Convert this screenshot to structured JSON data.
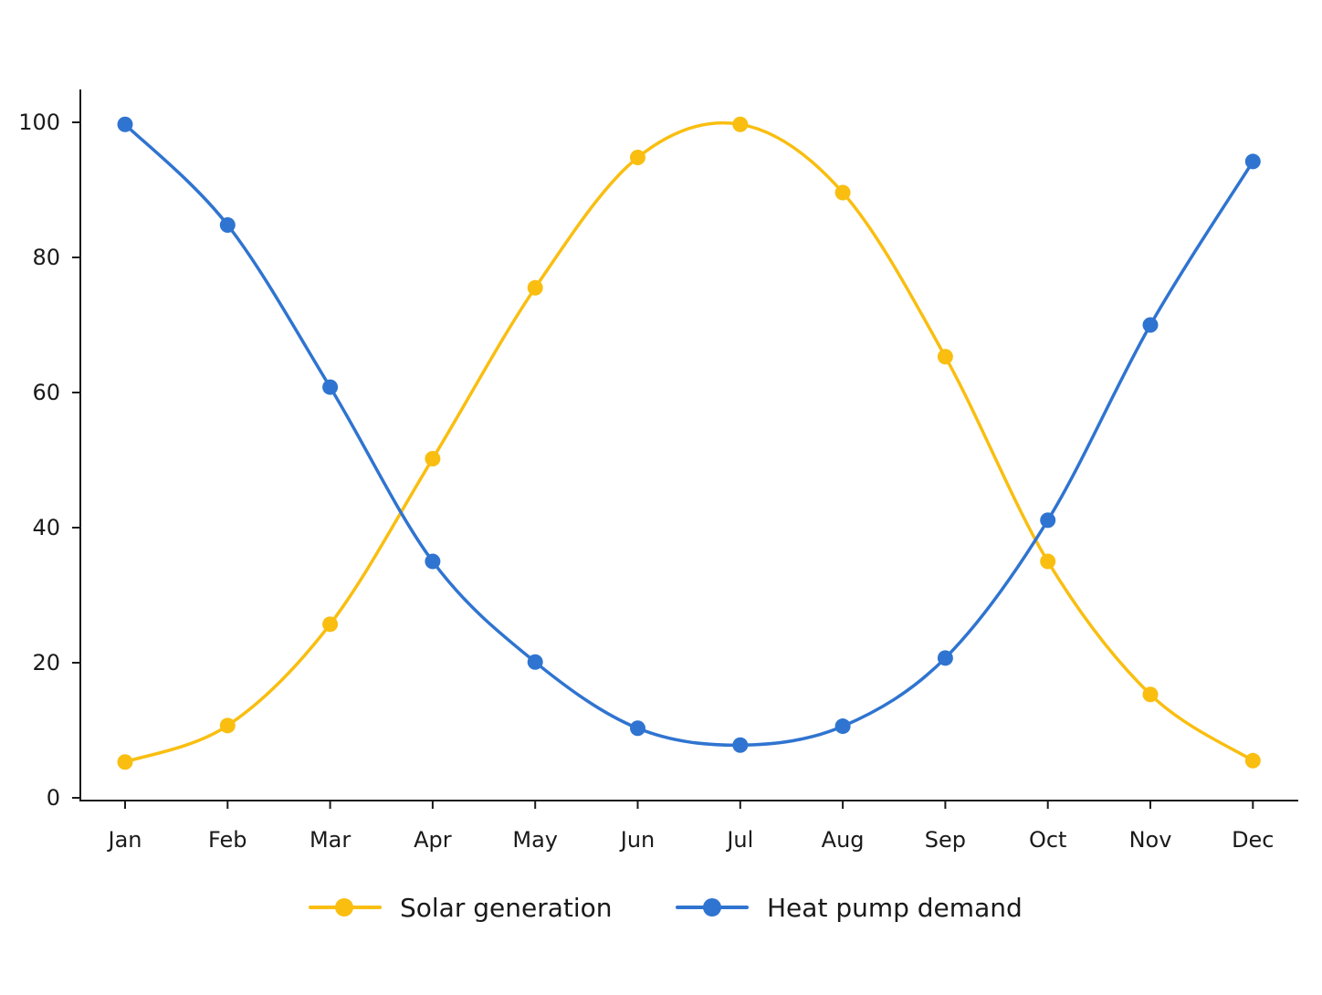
{
  "chart_data": {
    "type": "line",
    "title": "",
    "xlabel": "",
    "ylabel": "",
    "categories": [
      "Jan",
      "Feb",
      "Mar",
      "Apr",
      "May",
      "Jun",
      "Jul",
      "Aug",
      "Sep",
      "Oct",
      "Nov",
      "Dec"
    ],
    "ylim": [
      0,
      105
    ],
    "yticks": [
      0,
      20,
      40,
      60,
      80,
      100
    ],
    "grid": false,
    "smooth": true,
    "markers": true,
    "legend_position": "bottom-center",
    "series": [
      {
        "name": "Solar generation",
        "color": "#F9BE10",
        "values": [
          5.3,
          10.7,
          25.7,
          50.2,
          75.5,
          94.8,
          99.7,
          89.6,
          65.3,
          35.0,
          15.3,
          5.5
        ]
      },
      {
        "name": "Heat pump demand",
        "color": "#2F74D0",
        "values": [
          99.7,
          84.8,
          60.8,
          35.0,
          20.1,
          10.3,
          7.8,
          10.6,
          20.7,
          41.1,
          70.0,
          94.2
        ]
      }
    ]
  }
}
